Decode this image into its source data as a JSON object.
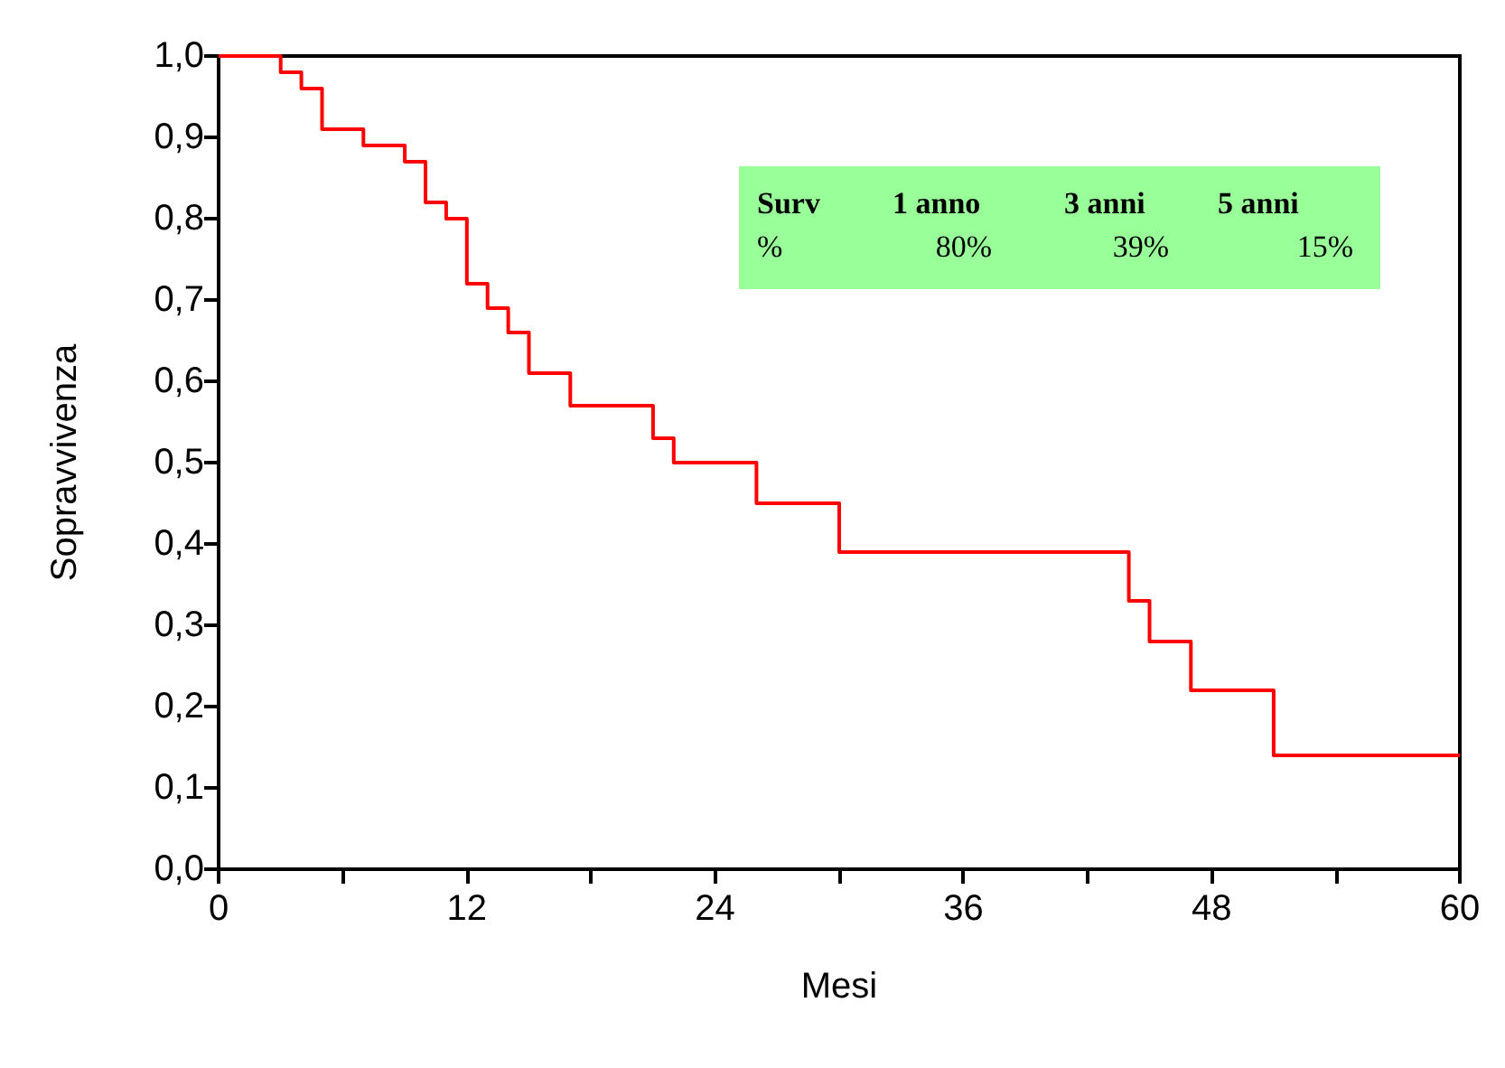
{
  "chart_data": {
    "type": "step",
    "xlabel": "Mesi",
    "ylabel": "Sopravvivenza",
    "x": [
      0,
      3,
      4,
      5,
      7,
      9,
      10,
      11,
      12,
      13,
      14,
      15,
      17,
      21,
      22,
      26,
      30,
      44,
      45,
      47,
      51,
      60
    ],
    "series": [
      {
        "color": "#ff0000",
        "values": [
          1.0,
          0.98,
          0.96,
          0.91,
          0.89,
          0.87,
          0.82,
          0.8,
          0.72,
          0.69,
          0.66,
          0.61,
          0.57,
          0.53,
          0.5,
          0.45,
          0.39,
          0.33,
          0.28,
          0.22,
          0.14,
          0.14
        ]
      }
    ],
    "xlim": [
      0,
      60
    ],
    "xticks": [
      0,
      {
        "value": 6,
        "label": null
      },
      12,
      {
        "value": 18,
        "label": null
      },
      24,
      {
        "value": 30,
        "label": null
      },
      36,
      {
        "value": 42,
        "label": null
      },
      48,
      {
        "value": 54,
        "label": null
      },
      60
    ],
    "ylim": [
      0,
      1
    ],
    "yticks": [
      {
        "value": 0,
        "label": "0,0"
      },
      {
        "value": 0.1,
        "label": "0,1"
      },
      {
        "value": 0.2,
        "label": "0,2"
      },
      {
        "value": 0.3,
        "label": "0,3"
      },
      {
        "value": 0.4,
        "label": "0,4"
      },
      {
        "value": 0.5,
        "label": "0,5"
      },
      {
        "value": 0.6,
        "label": "0,6"
      },
      {
        "value": 0.7,
        "label": "0,7"
      },
      {
        "value": 0.8,
        "label": "0,8"
      },
      {
        "value": 0.9,
        "label": "0,9"
      },
      {
        "value": 1,
        "label": "1,0"
      }
    ],
    "annotations": [
      "Surv",
      "1 anno",
      "3 anni",
      "5 anni",
      "%",
      "80%",
      "39%",
      "15%"
    ],
    "grid": false,
    "marker": "none",
    "line_style": "solid"
  }
}
